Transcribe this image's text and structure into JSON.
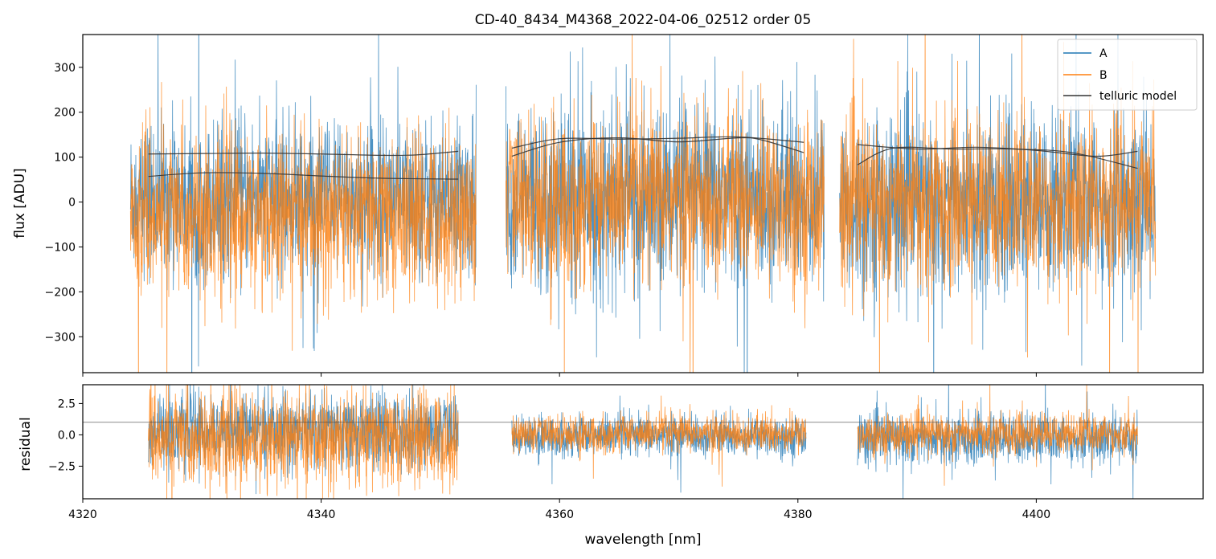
{
  "chart_data": [
    {
      "type": "line",
      "panel": "top",
      "title": "CD-40_8434_M4368_2022-04-06_02512  order 05",
      "xlabel": "",
      "ylabel": "flux [ADU]",
      "xlim": [
        4320,
        4414
      ],
      "ylim": [
        -380,
        373
      ],
      "yticks": [
        -300,
        -200,
        -100,
        0,
        100,
        200,
        300
      ],
      "ytick_labels": [
        "−300",
        "−200",
        "−100",
        "0",
        "100",
        "200",
        "300"
      ],
      "xticks": [
        4320,
        4340,
        4360,
        4380,
        4400
      ],
      "legend": {
        "placement": "top-right",
        "entries": [
          "A",
          "B",
          "telluric model"
        ]
      },
      "colors": {
        "A": "#1f77b4",
        "B": "#ff7f0e",
        "telluric model": "#333333"
      },
      "noise_segments": [
        {
          "x_start": 4324.0,
          "x_end": 4353.0,
          "A_sigma": 85,
          "B_sigma": 90,
          "A_mean": 10,
          "B_mean": -30
        },
        {
          "x_start": 4355.5,
          "x_end": 4382.2,
          "A_sigma": 100,
          "B_sigma": 95,
          "A_mean": 10,
          "B_mean": 5
        },
        {
          "x_start": 4383.5,
          "x_end": 4410.0,
          "A_sigma": 100,
          "B_sigma": 95,
          "A_mean": 0,
          "B_mean": 0
        }
      ],
      "series": [
        {
          "name": "telluric model",
          "group": "A",
          "x": [
            4325.5,
            4330,
            4335,
            4340,
            4345,
            4348,
            4351.5
          ],
          "y": [
            107,
            108,
            109,
            107,
            104,
            105,
            113
          ]
        },
        {
          "name": "telluric model",
          "group": "B",
          "x": [
            4325.5,
            4330,
            4335,
            4340,
            4345,
            4351.5
          ],
          "y": [
            57,
            65,
            64,
            58,
            53,
            51
          ]
        },
        {
          "name": "telluric model",
          "group": "A",
          "x": [
            4356,
            4360,
            4365,
            4370,
            4375,
            4380.5
          ],
          "y": [
            120,
            141,
            140,
            142,
            145,
            133
          ]
        },
        {
          "name": "telluric model",
          "group": "B",
          "x": [
            4356,
            4360,
            4365,
            4370,
            4375,
            4377,
            4380.5
          ],
          "y": [
            102,
            133,
            143,
            134,
            143,
            138,
            110
          ]
        },
        {
          "name": "telluric model",
          "group": "A",
          "x": [
            4385,
            4390,
            4395,
            4400,
            4405,
            4408.5
          ],
          "y": [
            128,
            118,
            122,
            115,
            102,
            113
          ]
        },
        {
          "name": "telluric model",
          "group": "B",
          "x": [
            4385,
            4388,
            4393,
            4398,
            4403,
            4408.5
          ],
          "y": [
            83,
            120,
            118,
            118,
            110,
            75
          ]
        }
      ]
    },
    {
      "type": "line",
      "panel": "bottom",
      "xlabel": "wavelength [nm]",
      "ylabel": "residual",
      "xlim": [
        4320,
        4414
      ],
      "ylim": [
        -5.1,
        4.0
      ],
      "yticks": [
        -2.5,
        0.0,
        2.5
      ],
      "ytick_labels": [
        "−2.5",
        "0.0",
        "2.5"
      ],
      "xticks": [
        4320,
        4340,
        4360,
        4380,
        4400
      ],
      "xtick_labels": [
        "4320",
        "4340",
        "4360",
        "4380",
        "4400"
      ],
      "reference_line": 1.0,
      "noise_segments": [
        {
          "x_start": 4325.5,
          "x_end": 4351.5,
          "A_sigma": 1.5,
          "B_sigma": 1.9,
          "A_mean": 0.3,
          "B_mean": -0.3
        },
        {
          "x_start": 4356.0,
          "x_end": 4380.7,
          "A_sigma": 0.8,
          "B_sigma": 0.75,
          "A_mean": -0.1,
          "B_mean": 0.1
        },
        {
          "x_start": 4385.0,
          "x_end": 4408.5,
          "A_sigma": 1.0,
          "B_sigma": 0.8,
          "A_mean": -0.3,
          "B_mean": 0.1
        }
      ]
    }
  ]
}
